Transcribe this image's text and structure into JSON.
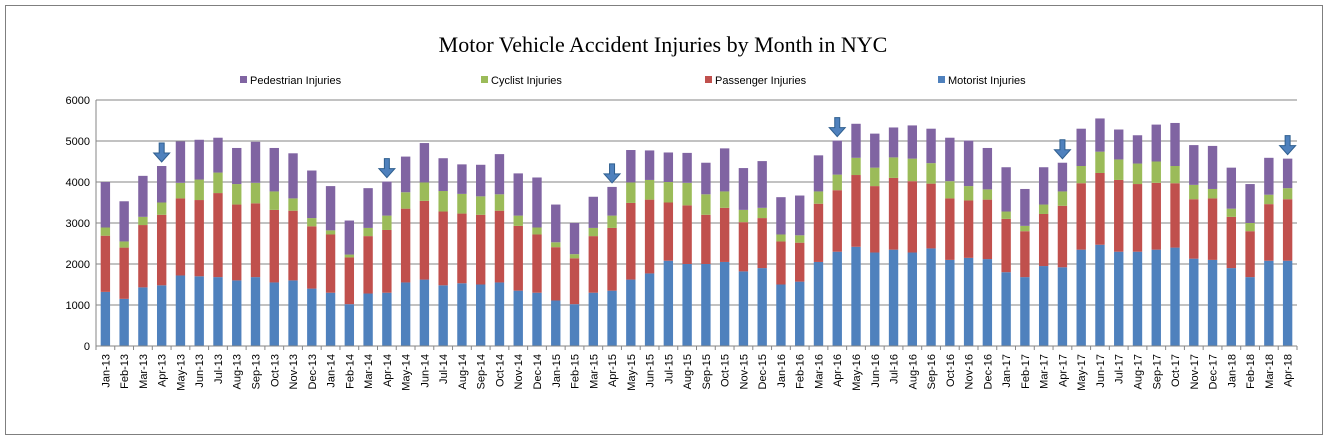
{
  "chart_data": {
    "type": "bar",
    "stacked": true,
    "title": "Motor Vehicle Accident Injuries by Month in NYC",
    "xlabel": "",
    "ylabel": "",
    "ylim": [
      0,
      6000
    ],
    "yticks": [
      0,
      1000,
      2000,
      3000,
      4000,
      5000,
      6000
    ],
    "grid": true,
    "legend_position": "top",
    "legend_order": [
      "Pedestrian Injuries",
      "Cyclist Injuries",
      "Passenger Injuries",
      "Motorist Injuries"
    ],
    "categories": [
      "Jan-13",
      "Feb-13",
      "Mar-13",
      "Apr-13",
      "May-13",
      "Jun-13",
      "Jul-13",
      "Aug-13",
      "Sep-13",
      "Oct-13",
      "Nov-13",
      "Dec-13",
      "Jan-14",
      "Feb-14",
      "Mar-14",
      "Apr-14",
      "May-14",
      "Jun-14",
      "Jul-14",
      "Aug-14",
      "Sep-14",
      "Oct-14",
      "Nov-14",
      "Dec-14",
      "Jan-15",
      "Feb-15",
      "Mar-15",
      "Apr-15",
      "May-15",
      "Jun-15",
      "Jul-15",
      "Aug-15",
      "Sep-15",
      "Oct-15",
      "Nov-15",
      "Dec-15",
      "Jan-16",
      "Feb-16",
      "Mar-16",
      "Apr-16",
      "May-16",
      "Jun-16",
      "Jul-16",
      "Aug-16",
      "Sep-16",
      "Oct-16",
      "Nov-16",
      "Dec-16",
      "Jan-17",
      "Feb-17",
      "Mar-17",
      "Apr-17",
      "May-17",
      "Jun-17",
      "Jul-17",
      "Aug-17",
      "Sep-17",
      "Oct-17",
      "Nov-17",
      "Dec-17",
      "Jan-18",
      "Feb-18",
      "Mar-18",
      "Apr-18"
    ],
    "series": [
      {
        "name": "Motorist Injuries",
        "color": "#4f81bd",
        "values": [
          1320,
          1150,
          1430,
          1480,
          1720,
          1700,
          1680,
          1600,
          1680,
          1550,
          1600,
          1400,
          1300,
          1020,
          1280,
          1300,
          1550,
          1620,
          1480,
          1530,
          1500,
          1550,
          1350,
          1300,
          1110,
          1020,
          1300,
          1350,
          1620,
          1770,
          2080,
          2000,
          2000,
          2050,
          1820,
          1900,
          1500,
          1570,
          2050,
          2300,
          2420,
          2280,
          2350,
          2280,
          2380,
          2100,
          2150,
          2120,
          1800,
          1680,
          1950,
          1920,
          2350,
          2470,
          2300,
          2300,
          2350,
          2400,
          2130,
          2100,
          1900,
          1680,
          2080,
          2080
        ]
      },
      {
        "name": "Passenger Injuries",
        "color": "#c0504d",
        "values": [
          1370,
          1250,
          1520,
          1720,
          1880,
          1860,
          2050,
          1850,
          1800,
          1770,
          1700,
          1520,
          1420,
          1140,
          1400,
          1530,
          1800,
          1920,
          1800,
          1700,
          1700,
          1750,
          1580,
          1420,
          1300,
          1120,
          1380,
          1530,
          1870,
          1800,
          1420,
          1430,
          1200,
          1320,
          1200,
          1220,
          1050,
          950,
          1420,
          1500,
          1750,
          1620,
          1750,
          1740,
          1580,
          1500,
          1400,
          1450,
          1300,
          1120,
          1270,
          1500,
          1620,
          1750,
          1750,
          1650,
          1630,
          1570,
          1450,
          1500,
          1250,
          1120,
          1380,
          1500
        ]
      },
      {
        "name": "Cyclist Injuries",
        "color": "#9bbb59",
        "values": [
          200,
          150,
          200,
          300,
          380,
          500,
          500,
          500,
          500,
          450,
          300,
          200,
          100,
          70,
          200,
          350,
          400,
          450,
          500,
          480,
          450,
          400,
          250,
          170,
          120,
          100,
          200,
          300,
          500,
          480,
          500,
          550,
          500,
          400,
          300,
          250,
          170,
          180,
          300,
          380,
          420,
          450,
          500,
          550,
          500,
          420,
          350,
          250,
          180,
          130,
          230,
          350,
          420,
          520,
          500,
          500,
          520,
          420,
          350,
          230,
          200,
          200,
          230,
          270
        ]
      },
      {
        "name": "Pedestrian Injuries",
        "color": "#8064a2",
        "values": [
          1110,
          980,
          1000,
          890,
          1010,
          970,
          850,
          880,
          1000,
          1060,
          1100,
          1160,
          1080,
          830,
          970,
          830,
          870,
          960,
          800,
          720,
          770,
          980,
          1030,
          1220,
          920,
          760,
          760,
          700,
          790,
          720,
          720,
          730,
          770,
          1050,
          1020,
          1140,
          910,
          970,
          880,
          830,
          830,
          830,
          730,
          810,
          840,
          1060,
          1110,
          1010,
          1080,
          900,
          910,
          700,
          910,
          810,
          730,
          690,
          900,
          1050,
          970,
          1050,
          1000,
          950,
          900,
          720
        ]
      }
    ],
    "annotations": [
      {
        "type": "arrow-down",
        "category": "Apr-13"
      },
      {
        "type": "arrow-down",
        "category": "Apr-14"
      },
      {
        "type": "arrow-down",
        "category": "Apr-15"
      },
      {
        "type": "arrow-down",
        "category": "Apr-16"
      },
      {
        "type": "arrow-down",
        "category": "Apr-17"
      },
      {
        "type": "arrow-down",
        "category": "Apr-18"
      }
    ],
    "arrow_color": "#4f81bd",
    "grid_color": "#868686",
    "axis_color": "#868686"
  }
}
